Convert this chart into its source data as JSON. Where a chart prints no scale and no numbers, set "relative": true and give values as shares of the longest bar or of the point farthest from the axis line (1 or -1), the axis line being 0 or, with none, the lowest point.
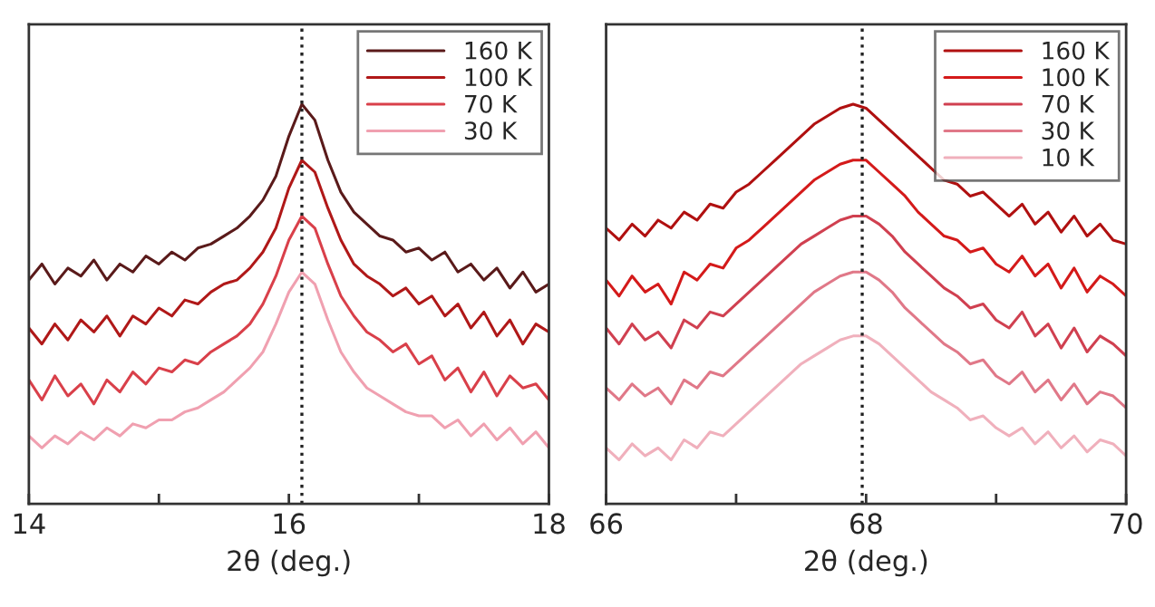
{
  "chart_data": [
    {
      "type": "line",
      "relative": true,
      "xlabel": "2θ (deg.)",
      "xlim": [
        14,
        18
      ],
      "xticks": [
        14,
        {
          "value": 15,
          "label": null
        },
        16,
        {
          "value": 17,
          "label": null
        },
        18
      ],
      "tick_labels": "x",
      "grid": false,
      "legend": "top right",
      "line_style": "solid",
      "marker": "none",
      "x": [
        14.0,
        14.1,
        14.2,
        14.3,
        14.4,
        14.5,
        14.6,
        14.7,
        14.8,
        14.9,
        15.0,
        15.1,
        15.2,
        15.3,
        15.4,
        15.5,
        15.6,
        15.7,
        15.8,
        15.9,
        16.0,
        16.1,
        16.2,
        16.3,
        16.4,
        16.5,
        16.6,
        16.7,
        16.8,
        16.9,
        17.0,
        17.1,
        17.2,
        17.3,
        17.4,
        17.5,
        17.6,
        17.7,
        17.8,
        17.9,
        18.0
      ],
      "ref_lines": [
        {
          "axis": "x",
          "value": 16.1,
          "label": null,
          "color": "#222222",
          "line_style": "dotted"
        }
      ],
      "series": [
        {
          "name": "160 K",
          "color": "#5a1a1a",
          "values": [
            0.56,
            0.6,
            0.55,
            0.59,
            0.57,
            0.61,
            0.56,
            0.6,
            0.58,
            0.62,
            0.6,
            0.63,
            0.61,
            0.64,
            0.65,
            0.67,
            0.69,
            0.72,
            0.76,
            0.82,
            0.92,
            1.0,
            0.96,
            0.86,
            0.78,
            0.73,
            0.7,
            0.67,
            0.66,
            0.63,
            0.64,
            0.61,
            0.63,
            0.58,
            0.6,
            0.56,
            0.59,
            0.54,
            0.58,
            0.53,
            0.55
          ]
        },
        {
          "name": "100 K",
          "color": "#b01818",
          "values": [
            0.44,
            0.4,
            0.45,
            0.41,
            0.46,
            0.43,
            0.47,
            0.42,
            0.47,
            0.45,
            0.49,
            0.47,
            0.51,
            0.5,
            0.53,
            0.55,
            0.56,
            0.59,
            0.63,
            0.69,
            0.79,
            0.86,
            0.83,
            0.74,
            0.66,
            0.6,
            0.57,
            0.55,
            0.52,
            0.54,
            0.5,
            0.52,
            0.47,
            0.5,
            0.44,
            0.48,
            0.42,
            0.46,
            0.4,
            0.45,
            0.43
          ]
        },
        {
          "name": "70 K",
          "color": "#d9404a",
          "values": [
            0.31,
            0.26,
            0.32,
            0.27,
            0.3,
            0.25,
            0.31,
            0.28,
            0.33,
            0.3,
            0.34,
            0.33,
            0.36,
            0.35,
            0.38,
            0.4,
            0.42,
            0.45,
            0.5,
            0.57,
            0.66,
            0.72,
            0.69,
            0.6,
            0.52,
            0.47,
            0.43,
            0.41,
            0.38,
            0.4,
            0.35,
            0.37,
            0.31,
            0.34,
            0.28,
            0.33,
            0.27,
            0.32,
            0.29,
            0.3,
            0.26
          ]
        },
        {
          "name": "30 K",
          "color": "#f0a0b0",
          "values": [
            0.17,
            0.14,
            0.17,
            0.15,
            0.18,
            0.16,
            0.19,
            0.17,
            0.2,
            0.19,
            0.21,
            0.21,
            0.23,
            0.24,
            0.26,
            0.28,
            0.31,
            0.34,
            0.38,
            0.45,
            0.53,
            0.58,
            0.55,
            0.46,
            0.38,
            0.33,
            0.29,
            0.27,
            0.25,
            0.23,
            0.22,
            0.22,
            0.19,
            0.21,
            0.17,
            0.2,
            0.16,
            0.19,
            0.15,
            0.18,
            0.14
          ]
        }
      ]
    },
    {
      "type": "line",
      "relative": true,
      "xlabel": "2θ (deg.)",
      "xlim": [
        66,
        70
      ],
      "xticks": [
        66,
        {
          "value": 67,
          "label": null
        },
        68,
        {
          "value": 69,
          "label": null
        },
        70
      ],
      "tick_labels": "x",
      "grid": false,
      "legend": "top right",
      "line_style": "solid",
      "marker": "none",
      "x": [
        66.0,
        66.1,
        66.2,
        66.3,
        66.4,
        66.5,
        66.6,
        66.7,
        66.8,
        66.9,
        67.0,
        67.1,
        67.2,
        67.3,
        67.4,
        67.5,
        67.6,
        67.7,
        67.8,
        67.9,
        68.0,
        68.1,
        68.2,
        68.3,
        68.4,
        68.5,
        68.6,
        68.7,
        68.8,
        68.9,
        69.0,
        69.1,
        69.2,
        69.3,
        69.4,
        69.5,
        69.6,
        69.7,
        69.8,
        69.9,
        70.0
      ],
      "ref_lines": [
        {
          "axis": "x",
          "value": 67.97,
          "label": null,
          "color": "#222222",
          "line_style": "dotted"
        }
      ],
      "series": [
        {
          "name": "160 K",
          "color": "#b01010",
          "values": [
            0.69,
            0.66,
            0.7,
            0.67,
            0.71,
            0.69,
            0.73,
            0.71,
            0.75,
            0.74,
            0.78,
            0.8,
            0.83,
            0.86,
            0.89,
            0.92,
            0.95,
            0.97,
            0.99,
            1.0,
            0.99,
            0.96,
            0.93,
            0.9,
            0.87,
            0.84,
            0.81,
            0.8,
            0.77,
            0.78,
            0.75,
            0.72,
            0.75,
            0.7,
            0.73,
            0.68,
            0.72,
            0.67,
            0.7,
            0.66,
            0.65
          ]
        },
        {
          "name": "100 K",
          "color": "#d41a1a",
          "values": [
            0.56,
            0.52,
            0.57,
            0.53,
            0.55,
            0.5,
            0.58,
            0.56,
            0.6,
            0.59,
            0.64,
            0.66,
            0.69,
            0.72,
            0.75,
            0.78,
            0.81,
            0.83,
            0.85,
            0.86,
            0.86,
            0.83,
            0.8,
            0.77,
            0.73,
            0.7,
            0.67,
            0.66,
            0.63,
            0.64,
            0.6,
            0.58,
            0.62,
            0.57,
            0.6,
            0.54,
            0.59,
            0.53,
            0.57,
            0.55,
            0.52
          ]
        },
        {
          "name": "70 K",
          "color": "#d04050",
          "values": [
            0.44,
            0.4,
            0.45,
            0.41,
            0.43,
            0.39,
            0.46,
            0.44,
            0.48,
            0.47,
            0.5,
            0.53,
            0.56,
            0.59,
            0.62,
            0.65,
            0.67,
            0.69,
            0.71,
            0.72,
            0.72,
            0.7,
            0.67,
            0.63,
            0.6,
            0.57,
            0.54,
            0.52,
            0.49,
            0.5,
            0.46,
            0.44,
            0.48,
            0.42,
            0.45,
            0.39,
            0.44,
            0.38,
            0.42,
            0.4,
            0.37
          ]
        },
        {
          "name": "30 K",
          "color": "#e07888",
          "values": [
            0.29,
            0.26,
            0.3,
            0.27,
            0.29,
            0.25,
            0.31,
            0.29,
            0.33,
            0.32,
            0.35,
            0.38,
            0.41,
            0.44,
            0.47,
            0.5,
            0.53,
            0.55,
            0.57,
            0.58,
            0.58,
            0.56,
            0.53,
            0.49,
            0.46,
            0.43,
            0.4,
            0.38,
            0.35,
            0.36,
            0.32,
            0.3,
            0.33,
            0.28,
            0.31,
            0.26,
            0.3,
            0.25,
            0.28,
            0.27,
            0.24
          ]
        },
        {
          "name": "10 K",
          "color": "#f0b0bc",
          "values": [
            0.14,
            0.11,
            0.15,
            0.12,
            0.14,
            0.11,
            0.16,
            0.14,
            0.18,
            0.17,
            0.2,
            0.23,
            0.26,
            0.29,
            0.32,
            0.35,
            0.37,
            0.39,
            0.41,
            0.42,
            0.42,
            0.4,
            0.37,
            0.34,
            0.31,
            0.28,
            0.26,
            0.24,
            0.21,
            0.22,
            0.19,
            0.17,
            0.19,
            0.15,
            0.18,
            0.14,
            0.17,
            0.13,
            0.16,
            0.15,
            0.12
          ]
        }
      ]
    }
  ]
}
